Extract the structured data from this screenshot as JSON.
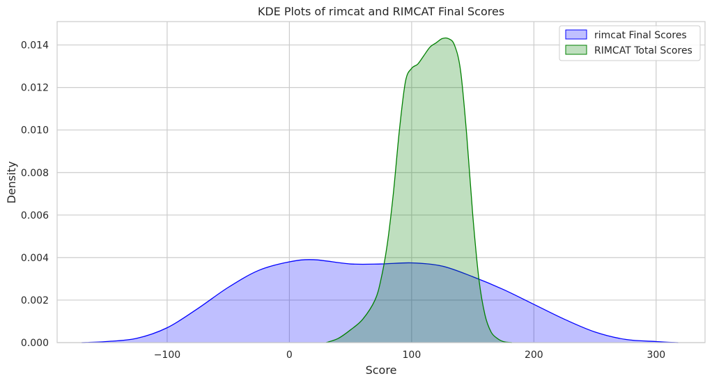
{
  "chart_data": {
    "type": "area",
    "title": "KDE Plots of rimcat and RIMCAT Final Scores",
    "xlabel": "Score",
    "ylabel": "Density",
    "xlim": [
      -190,
      340
    ],
    "ylim": [
      0,
      0.0151
    ],
    "x_ticks": [
      -100,
      0,
      100,
      200,
      300
    ],
    "x_tick_labels": [
      "−100",
      "0",
      "100",
      "200",
      "300"
    ],
    "y_ticks": [
      0.0,
      0.002,
      0.004,
      0.006,
      0.008,
      0.01,
      0.012,
      0.014
    ],
    "y_tick_labels": [
      "0.000",
      "0.002",
      "0.004",
      "0.006",
      "0.008",
      "0.010",
      "0.012",
      "0.014"
    ],
    "grid": true,
    "legend_position": "top-right",
    "series": [
      {
        "name": "rimcat Final Scores",
        "stroke": "#0000ff",
        "fill": "#0000ff",
        "fill_opacity": 0.25,
        "x": [
          -170,
          -150,
          -125,
          -100,
          -75,
          -50,
          -25,
          0,
          20,
          50,
          75,
          100,
          125,
          150,
          175,
          200,
          225,
          250,
          275,
          300,
          318
        ],
        "y": [
          0.0,
          5e-05,
          0.0002,
          0.0007,
          0.0016,
          0.0026,
          0.0034,
          0.0038,
          0.0039,
          0.0037,
          0.0037,
          0.00375,
          0.0036,
          0.0031,
          0.0025,
          0.0018,
          0.0011,
          0.0005,
          0.00015,
          5e-05,
          0.0
        ]
      },
      {
        "name": "RIMCAT Total Scores",
        "stroke": "#008000",
        "fill": "#008000",
        "fill_opacity": 0.25,
        "x": [
          30,
          40,
          50,
          60,
          70,
          75,
          80,
          85,
          90,
          95,
          100,
          105,
          110,
          115,
          120,
          125,
          130,
          135,
          140,
          145,
          150,
          155,
          160,
          165,
          170,
          175,
          182
        ],
        "y": [
          0.0,
          0.0002,
          0.0006,
          0.0011,
          0.002,
          0.003,
          0.0046,
          0.007,
          0.01,
          0.0123,
          0.0129,
          0.0131,
          0.0135,
          0.0139,
          0.0141,
          0.0143,
          0.0143,
          0.014,
          0.0128,
          0.0098,
          0.006,
          0.003,
          0.0013,
          0.0005,
          0.0002,
          5e-05,
          0.0
        ]
      }
    ]
  }
}
